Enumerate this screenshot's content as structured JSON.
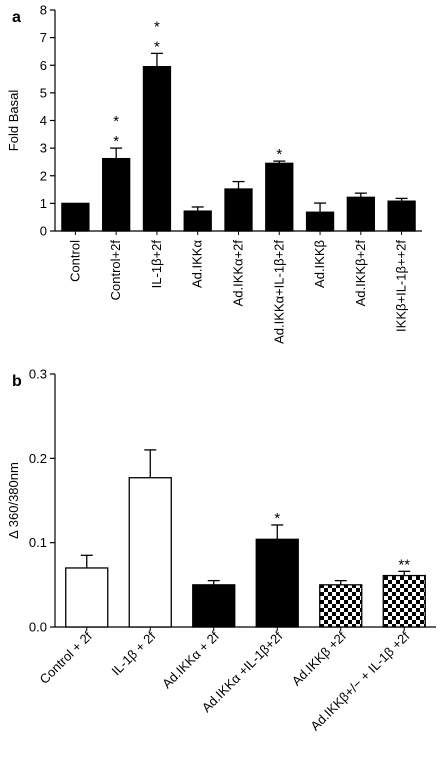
{
  "chart_data": [
    {
      "type": "bar",
      "panel_label": "a",
      "ylabel": "Fold Basal",
      "xlabel": "",
      "ylim": [
        0,
        8
      ],
      "yticks": [
        0,
        1,
        2,
        3,
        4,
        5,
        6,
        7,
        8
      ],
      "categories": [
        "Control",
        "Control+2f",
        "IL-1β+2f",
        "Ad.IKKα",
        "Ad.IKKα+2f",
        "Ad.IKKα+IL-1β+2f",
        "Ad.IKKβ",
        "Ad.IKKβ+2f",
        "IKKβ+IL-1β++2f"
      ],
      "values": [
        1.0,
        2.62,
        5.95,
        0.72,
        1.52,
        2.45,
        0.68,
        1.22,
        1.08
      ],
      "errors": [
        0.0,
        0.38,
        0.48,
        0.15,
        0.27,
        0.08,
        0.33,
        0.15,
        0.1
      ],
      "annotations": [
        "",
        "*\n*",
        "*\n*",
        "",
        "",
        "*",
        "",
        "",
        ""
      ],
      "fills": [
        "#000000",
        "#000000",
        "#000000",
        "#000000",
        "#000000",
        "#000000",
        "#000000",
        "#000000",
        "#000000"
      ],
      "grid": false
    },
    {
      "type": "bar",
      "panel_label": "b",
      "ylabel": "Δ 360/380nm",
      "xlabel": "",
      "ylim": [
        0.0,
        0.3
      ],
      "yticks": [
        "0.0",
        "0.1",
        "0.2",
        "0.3"
      ],
      "categories": [
        "Control + 2f",
        "IL-1β + 2f",
        "Ad.IKKα + 2f",
        "Ad.IKKα +IL-1β+2f",
        "Ad.IKKβ +2f",
        "Ad.IKKβ+/− + IL-1β +2f"
      ],
      "values": [
        0.07,
        0.177,
        0.05,
        0.104,
        0.05,
        0.061
      ],
      "errors": [
        0.015,
        0.033,
        0.005,
        0.017,
        0.005,
        0.005
      ],
      "annotations": [
        "",
        "",
        "",
        "*",
        "",
        "**"
      ],
      "fills": [
        "white",
        "white",
        "black",
        "black",
        "checker",
        "checker"
      ],
      "grid": false
    }
  ]
}
